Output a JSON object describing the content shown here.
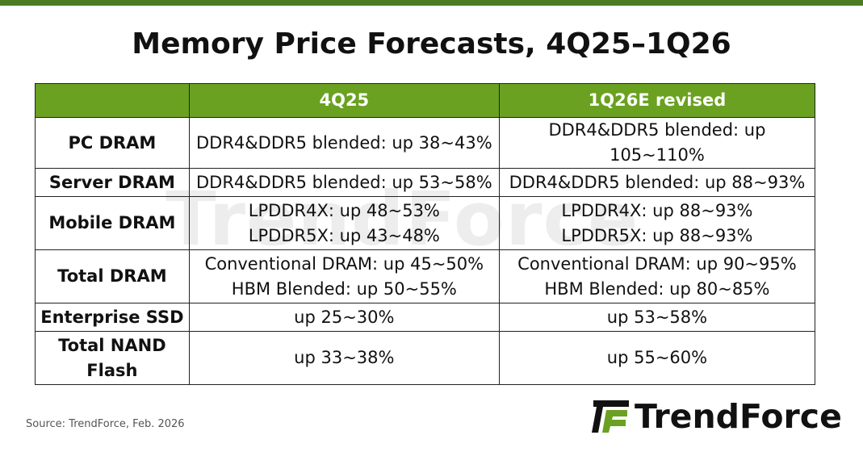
{
  "header": {
    "title": "Memory Price Forecasts, 4Q25–1Q26"
  },
  "table": {
    "columns": [
      "4Q25",
      "1Q26E revised"
    ],
    "rows": [
      {
        "label": [
          "PC DRAM"
        ],
        "cells": [
          [
            "DDR4&DDR5 blended: up 38~43%"
          ],
          [
            "DDR4&DDR5 blended: up 105~110%"
          ]
        ]
      },
      {
        "label": [
          "Server DRAM"
        ],
        "cells": [
          [
            "DDR4&DDR5 blended: up 53~58%"
          ],
          [
            "DDR4&DDR5 blended: up 88~93%"
          ]
        ]
      },
      {
        "label": [
          "Mobile DRAM"
        ],
        "cells": [
          [
            "LPDDR4X: up 48~53%",
            "LPDDR5X: up 43~48%"
          ],
          [
            "LPDDR4X: up 88~93%",
            "LPDDR5X: up 88~93%"
          ]
        ]
      },
      {
        "label": [
          "Total DRAM"
        ],
        "cells": [
          [
            "Conventional DRAM: up 45~50%",
            "HBM Blended: up 50~55%"
          ],
          [
            "Conventional DRAM: up 90~95%",
            "HBM Blended: up 80~85%"
          ]
        ]
      },
      {
        "label": [
          "Enterprise SSD"
        ],
        "cells": [
          [
            "up 25~30%"
          ],
          [
            "up 53~58%"
          ]
        ]
      },
      {
        "label": [
          "Total NAND",
          "Flash"
        ],
        "cells": [
          [
            "up 33~38%"
          ],
          [
            "up 55~60%"
          ]
        ]
      }
    ]
  },
  "watermark": "TrendForce",
  "source": "Source: TrendForce, Feb. 2026",
  "logo": "TrendForce"
}
